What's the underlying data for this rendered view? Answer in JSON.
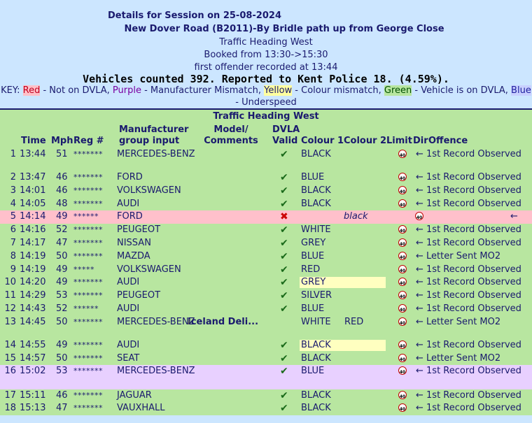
{
  "header": {
    "title": "Details for Session on 25-08-2024",
    "road": "New Dover Road (B2011)-By Bridle path  up from George Close",
    "direction": "Traffic Heading West",
    "booked": "Booked from 13:30->15:30",
    "first_offender": "first offender recorded at 13:44",
    "counted": "Vehicles counted 392.  Reported to Kent Police 18. (4.59%)."
  },
  "key": {
    "prefix": "KEY:",
    "red": "Red",
    "red_text": " - Not on DVLA, ",
    "purple": "Purple",
    "purple_text": " - Manufacturer Mismatch, ",
    "yellow": "Yellow",
    "yellow_text": " - Colour mismatch, ",
    "green": "Green",
    "green_text": " - Vehicle is on DVLA, ",
    "blue": "Blue",
    "blue_text": " - Underspeed"
  },
  "table": {
    "title": "Traffic Heading West",
    "headers": {
      "time": "Time",
      "mph": "Mph",
      "reg": "Reg #",
      "manufacturer": "Manufacturer group input",
      "model": "Model/ Comments",
      "dvla": "DVLA Valid",
      "colour1": "Colour 1",
      "colour2": "Colour 2",
      "limit": "Limit",
      "dir": "Dir",
      "offence": "Offence"
    },
    "limit_icon": "40",
    "rows": [
      {
        "n": "1",
        "time": "13:44",
        "mph": "51",
        "reg": "*******",
        "manu": "MERCEDES-BENZ",
        "model": "",
        "valid": "✔",
        "c1": "BLACK",
        "c2": "",
        "offence": "← 1st Record Observed"
      },
      {
        "n": "2",
        "time": "13:47",
        "mph": "46",
        "reg": "*******",
        "manu": "FORD",
        "model": "",
        "valid": "✔",
        "c1": "BLUE",
        "c2": "",
        "offence": "← 1st Record Observed"
      },
      {
        "n": "3",
        "time": "14:01",
        "mph": "46",
        "reg": "*******",
        "manu": "VOLKSWAGEN",
        "model": "",
        "valid": "✔",
        "c1": "BLACK",
        "c2": "",
        "offence": "← 1st Record Observed"
      },
      {
        "n": "4",
        "time": "14:05",
        "mph": "48",
        "reg": "*******",
        "manu": "AUDI",
        "model": "",
        "valid": "✔",
        "c1": "BLACK",
        "c2": "",
        "offence": "← 1st Record Observed"
      },
      {
        "n": "5",
        "time": "14:14",
        "mph": "49",
        "reg": "******",
        "manu": "FORD",
        "model": "",
        "valid": "✖",
        "c1": "",
        "c2": "black",
        "offence": "←"
      },
      {
        "n": "6",
        "time": "14:16",
        "mph": "52",
        "reg": "*******",
        "manu": "PEUGEOT",
        "model": "",
        "valid": "✔",
        "c1": "WHITE",
        "c2": "",
        "offence": "← 1st Record Observed"
      },
      {
        "n": "7",
        "time": "14:17",
        "mph": "47",
        "reg": "*******",
        "manu": "NISSAN",
        "model": "",
        "valid": "✔",
        "c1": "GREY",
        "c2": "",
        "offence": "← 1st Record Observed"
      },
      {
        "n": "8",
        "time": "14:19",
        "mph": "50",
        "reg": "*******",
        "manu": "MAZDA",
        "model": "",
        "valid": "✔",
        "c1": "BLUE",
        "c2": "",
        "offence": "← Letter Sent MO2"
      },
      {
        "n": "9",
        "time": "14:19",
        "mph": "49",
        "reg": "*****",
        "manu": "VOLKSWAGEN",
        "model": "",
        "valid": "✔",
        "c1": "RED",
        "c2": "",
        "offence": "← 1st Record Observed"
      },
      {
        "n": "10",
        "time": "14:20",
        "mph": "49",
        "reg": "*******",
        "manu": "AUDI",
        "model": "",
        "valid": "✔",
        "c1": "GREY",
        "c2": "",
        "offence": "← 1st Record Observed"
      },
      {
        "n": "11",
        "time": "14:29",
        "mph": "53",
        "reg": "*******",
        "manu": "PEUGEOT",
        "model": "",
        "valid": "✔",
        "c1": "SILVER",
        "c2": "",
        "offence": "← 1st Record Observed"
      },
      {
        "n": "12",
        "time": "14:43",
        "mph": "52",
        "reg": "******",
        "manu": "AUDI",
        "model": "",
        "valid": "✔",
        "c1": "BLUE",
        "c2": "",
        "offence": "← 1st Record Observed"
      },
      {
        "n": "13",
        "time": "14:45",
        "mph": "50",
        "reg": "*******",
        "manu": "MERCEDES-BENZ",
        "model": "Iceland Deli...",
        "valid": "",
        "c1": "WHITE",
        "c2": "RED",
        "offence": "← Letter Sent MO2"
      },
      {
        "n": "14",
        "time": "14:55",
        "mph": "49",
        "reg": "*******",
        "manu": "AUDI",
        "model": "",
        "valid": "✔",
        "c1": "BLACK",
        "c2": "",
        "offence": "← 1st Record Observed"
      },
      {
        "n": "15",
        "time": "14:57",
        "mph": "50",
        "reg": "*******",
        "manu": "SEAT",
        "model": "",
        "valid": "✔",
        "c1": "BLACK",
        "c2": "",
        "offence": "← Letter Sent MO2"
      },
      {
        "n": "16",
        "time": "15:02",
        "mph": "53",
        "reg": "*******",
        "manu": "MERCEDES-BENZ",
        "model": "",
        "valid": "✔",
        "c1": "BLUE",
        "c2": "",
        "offence": "← 1st Record Observed"
      },
      {
        "n": "17",
        "time": "15:11",
        "mph": "46",
        "reg": "*******",
        "manu": "JAGUAR",
        "model": "",
        "valid": "✔",
        "c1": "BLACK",
        "c2": "",
        "offence": "← 1st Record Observed"
      },
      {
        "n": "18",
        "time": "15:13",
        "mph": "47",
        "reg": "*******",
        "manu": "VAUXHALL",
        "model": "",
        "valid": "✔",
        "c1": "BLACK",
        "c2": "",
        "offence": "← 1st Record Observed"
      }
    ]
  }
}
